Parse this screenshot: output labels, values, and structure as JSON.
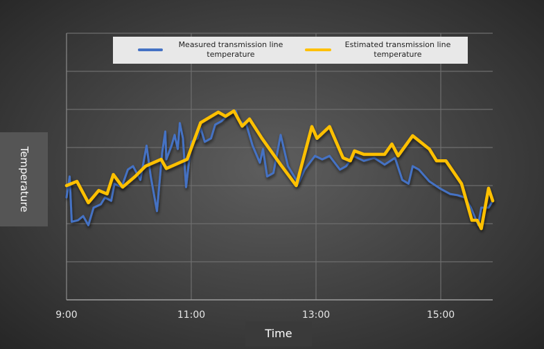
{
  "chart_data": {
    "type": "line",
    "title": "",
    "xlabel": "Time",
    "ylabel": "Temperature",
    "x_ticks": [
      "9:00",
      "11:00",
      "13:00",
      "15:00"
    ],
    "xlim": [
      "9:00",
      "15:50"
    ],
    "ylim": [
      0,
      7
    ],
    "y_ticks_labeled": false,
    "grid": true,
    "legend_position": "top",
    "series": [
      {
        "name": "Measured transmission line temperature",
        "color": "#4472c4",
        "points": [
          [
            "9:00",
            2.69
          ],
          [
            "9:03",
            3.24
          ],
          [
            "9:05",
            2.05
          ],
          [
            "9:11",
            2.09
          ],
          [
            "9:16",
            2.2
          ],
          [
            "9:21",
            1.96
          ],
          [
            "9:26",
            2.42
          ],
          [
            "9:33",
            2.51
          ],
          [
            "9:37",
            2.69
          ],
          [
            "9:43",
            2.6
          ],
          [
            "9:46",
            3.05
          ],
          [
            "9:53",
            2.96
          ],
          [
            "9:59",
            3.42
          ],
          [
            "10:04",
            3.51
          ],
          [
            "10:11",
            3.15
          ],
          [
            "10:17",
            4.05
          ],
          [
            "10:21",
            3.24
          ],
          [
            "10:27",
            2.33
          ],
          [
            "10:32",
            3.87
          ],
          [
            "10:35",
            4.42
          ],
          [
            "10:36",
            3.69
          ],
          [
            "10:41",
            4.05
          ],
          [
            "10:44",
            4.33
          ],
          [
            "10:47",
            3.96
          ],
          [
            "10:49",
            4.64
          ],
          [
            "10:52",
            4.24
          ],
          [
            "10:55",
            2.96
          ],
          [
            "11:00",
            4.15
          ],
          [
            "11:06",
            4.24
          ],
          [
            "11:09",
            4.51
          ],
          [
            "11:13",
            4.15
          ],
          [
            "11:19",
            4.24
          ],
          [
            "11:23",
            4.6
          ],
          [
            "11:29",
            4.69
          ],
          [
            "11:36",
            4.87
          ],
          [
            "11:43",
            4.96
          ],
          [
            "11:46",
            4.69
          ],
          [
            "11:53",
            4.6
          ],
          [
            "11:59",
            4.05
          ],
          [
            "12:06",
            3.6
          ],
          [
            "12:09",
            3.96
          ],
          [
            "12:13",
            3.24
          ],
          [
            "12:19",
            3.33
          ],
          [
            "12:26",
            4.33
          ],
          [
            "12:33",
            3.51
          ],
          [
            "12:39",
            3.24
          ],
          [
            "12:43",
            3.05
          ],
          [
            "12:49",
            3.42
          ],
          [
            "12:59",
            3.78
          ],
          [
            "13:06",
            3.69
          ],
          [
            "13:13",
            3.78
          ],
          [
            "13:23",
            3.42
          ],
          [
            "13:29",
            3.51
          ],
          [
            "13:36",
            3.78
          ],
          [
            "13:46",
            3.65
          ],
          [
            "13:56",
            3.73
          ],
          [
            "14:06",
            3.55
          ],
          [
            "14:16",
            3.73
          ],
          [
            "14:23",
            3.15
          ],
          [
            "14:29",
            3.05
          ],
          [
            "14:33",
            3.51
          ],
          [
            "14:39",
            3.42
          ],
          [
            "14:49",
            3.11
          ],
          [
            "14:59",
            2.93
          ],
          [
            "15:09",
            2.78
          ],
          [
            "15:16",
            2.75
          ],
          [
            "15:23",
            2.69
          ],
          [
            "15:29",
            2.42
          ],
          [
            "15:36",
            1.96
          ],
          [
            "15:39",
            2.42
          ],
          [
            "15:46",
            2.42
          ],
          [
            "15:50",
            2.6
          ]
        ]
      },
      {
        "name": "Estimated transmission line temperature",
        "color": "#ffc000",
        "points": [
          [
            "9:00",
            3.0
          ],
          [
            "9:10",
            3.11
          ],
          [
            "9:21",
            2.55
          ],
          [
            "9:31",
            2.87
          ],
          [
            "9:39",
            2.78
          ],
          [
            "9:45",
            3.29
          ],
          [
            "9:54",
            2.96
          ],
          [
            "10:06",
            3.24
          ],
          [
            "10:16",
            3.51
          ],
          [
            "10:31",
            3.69
          ],
          [
            "10:36",
            3.45
          ],
          [
            "10:56",
            3.69
          ],
          [
            "11:09",
            4.65
          ],
          [
            "11:26",
            4.93
          ],
          [
            "11:33",
            4.82
          ],
          [
            "11:41",
            4.96
          ],
          [
            "11:49",
            4.56
          ],
          [
            "11:56",
            4.75
          ],
          [
            "12:08",
            4.24
          ],
          [
            "12:26",
            3.55
          ],
          [
            "12:41",
            3.0
          ],
          [
            "12:56",
            4.55
          ],
          [
            "13:01",
            4.24
          ],
          [
            "13:13",
            4.55
          ],
          [
            "13:26",
            3.73
          ],
          [
            "13:33",
            3.65
          ],
          [
            "13:37",
            3.91
          ],
          [
            "13:46",
            3.82
          ],
          [
            "14:06",
            3.82
          ],
          [
            "14:13",
            4.09
          ],
          [
            "14:19",
            3.78
          ],
          [
            "14:33",
            4.31
          ],
          [
            "14:49",
            3.96
          ],
          [
            "14:56",
            3.65
          ],
          [
            "15:05",
            3.65
          ],
          [
            "15:20",
            3.05
          ],
          [
            "15:30",
            2.09
          ],
          [
            "15:35",
            2.09
          ],
          [
            "15:39",
            1.87
          ],
          [
            "15:46",
            2.93
          ],
          [
            "15:50",
            2.6
          ]
        ]
      }
    ]
  }
}
